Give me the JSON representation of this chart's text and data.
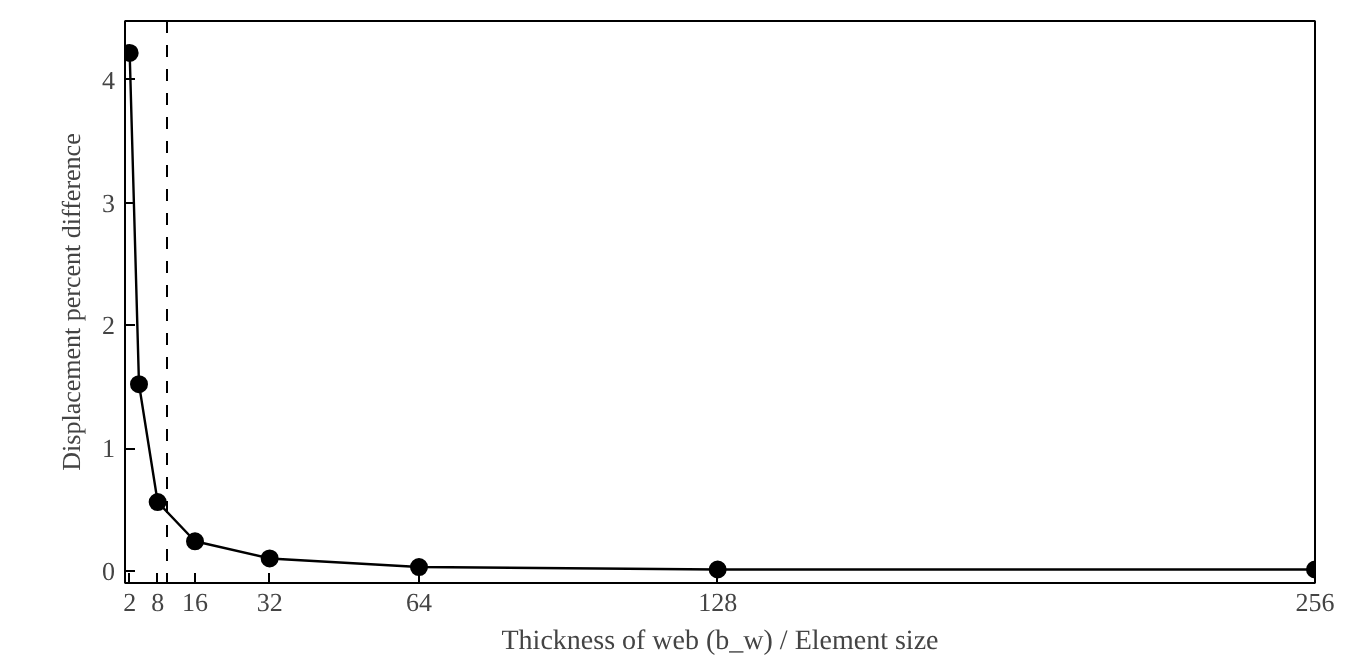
{
  "chart_data": {
    "type": "line",
    "xlabel": "Thickness of web (b_w) / Element size",
    "ylabel": "Displacement percent difference",
    "x": [
      2,
      4,
      8,
      16,
      32,
      64,
      128,
      256
    ],
    "series": [
      {
        "color": "#000000",
        "values": [
          4.22,
          1.52,
          0.56,
          0.24,
          0.1,
          0.03,
          0.01,
          0.01
        ]
      }
    ],
    "xlim": [
      1,
      256
    ],
    "ylim": [
      -0.1,
      4.48
    ],
    "xticks": [
      2,
      8,
      16,
      32,
      64,
      128,
      256
    ],
    "yticks": [
      0,
      1,
      2,
      3,
      4
    ],
    "ref_lines": [
      {
        "axis": "x",
        "value": 10,
        "line_style": "dashed",
        "color": "#000000"
      }
    ],
    "marker": "circle",
    "line_style": "solid",
    "grid": false
  }
}
